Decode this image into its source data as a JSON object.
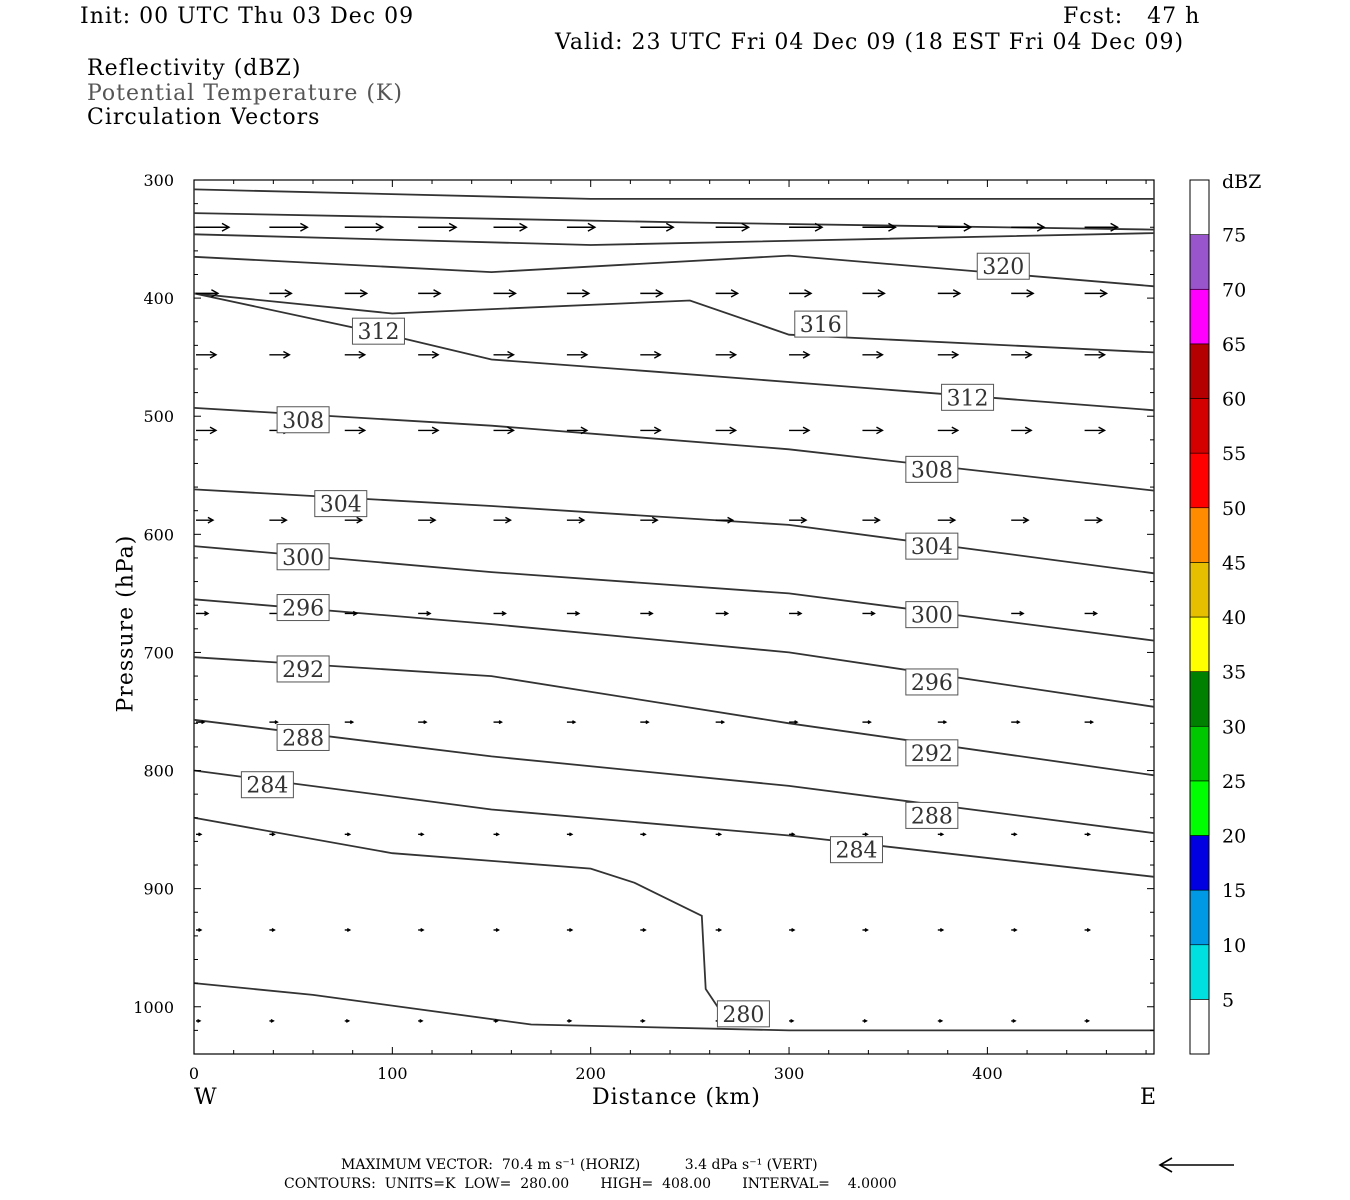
{
  "header": {
    "init": "Init: 00 UTC Thu 03 Dec 09",
    "fcst": "Fcst:   47 h",
    "valid": "Valid: 23 UTC Fri 04 Dec 09 (18 EST Fri 04 Dec 09)",
    "fields": [
      "Reflectivity (dBZ)",
      "Potential Temperature (K)",
      "Circulation Vectors"
    ]
  },
  "footer": {
    "max_vector": "MAXIMUM VECTOR:  70.4 m s⁻¹ (HORIZ)          3.4 dPa s⁻¹ (VERT)",
    "contours": "CONTOURS:  UNITS=K  LOW=  280.00       HIGH=  408.00       INTERVAL=    4.0000"
  },
  "colors": {
    "contour": "#333333",
    "vector": "#000000"
  },
  "chart_data": {
    "type": "line",
    "xlabel": "Distance (km)",
    "ylabel": "Pressure (hPa)",
    "xlim": [
      0,
      484
    ],
    "ylim": [
      1040,
      300
    ],
    "xticks": [
      0,
      100,
      200,
      300,
      400
    ],
    "yticks": [
      300,
      400,
      500,
      600,
      700,
      800,
      900,
      1000
    ],
    "x_end_labels": {
      "left": "W",
      "right": "E"
    },
    "colorbar": {
      "title": "dBZ",
      "labels": [
        "5",
        "10",
        "15",
        "20",
        "25",
        "30",
        "35",
        "40",
        "45",
        "50",
        "55",
        "60",
        "65",
        "70",
        "75"
      ],
      "colors": [
        "#ffffff",
        "#00e0e0",
        "#0099e6",
        "#0000e0",
        "#00ff00",
        "#00c800",
        "#008000",
        "#ffff00",
        "#e6bf00",
        "#ff8c00",
        "#ff0000",
        "#d40000",
        "#b40000",
        "#ff00ff",
        "#9955cc",
        "#ffffff"
      ]
    },
    "series": [
      {
        "name": "",
        "points": [
          [
            0,
            308
          ],
          [
            200,
            316
          ],
          [
            484,
            316
          ]
        ]
      },
      {
        "name": "",
        "points": [
          [
            0,
            328
          ],
          [
            250,
            336
          ],
          [
            484,
            342
          ]
        ]
      },
      {
        "name": "",
        "points": [
          [
            0,
            346
          ],
          [
            200,
            355
          ],
          [
            484,
            345
          ]
        ]
      },
      {
        "name": "320",
        "label": "320",
        "label_at": [
          408,
          373
        ],
        "points": [
          [
            0,
            365
          ],
          [
            150,
            378
          ],
          [
            300,
            364
          ],
          [
            484,
            390
          ]
        ]
      },
      {
        "name": "316",
        "label": "316",
        "label_at": [
          316,
          422
        ],
        "points": [
          [
            0,
            396
          ],
          [
            100,
            413
          ],
          [
            250,
            402
          ],
          [
            300,
            431
          ],
          [
            484,
            446
          ]
        ]
      },
      {
        "name": "312",
        "label": "312",
        "label_at": [
          93,
          428
        ],
        "label2_at": [
          390,
          484
        ],
        "points": [
          [
            0,
            396
          ],
          [
            100,
            432
          ],
          [
            150,
            452
          ],
          [
            230,
            462
          ],
          [
            484,
            495
          ]
        ]
      },
      {
        "name": "308",
        "label": "308",
        "label_at": [
          55,
          503
        ],
        "label2_at": [
          372,
          545
        ],
        "points": [
          [
            0,
            493
          ],
          [
            150,
            508
          ],
          [
            300,
            528
          ],
          [
            484,
            563
          ]
        ]
      },
      {
        "name": "304",
        "label": "304",
        "label_at": [
          74,
          574
        ],
        "label2_at": [
          372,
          610
        ],
        "points": [
          [
            0,
            562
          ],
          [
            150,
            576
          ],
          [
            300,
            592
          ],
          [
            484,
            633
          ]
        ]
      },
      {
        "name": "300",
        "label": "300",
        "label_at": [
          55,
          619
        ],
        "label2_at": [
          372,
          668
        ],
        "points": [
          [
            0,
            610
          ],
          [
            150,
            632
          ],
          [
            300,
            650
          ],
          [
            484,
            690
          ]
        ]
      },
      {
        "name": "296",
        "label": "296",
        "label_at": [
          55,
          662
        ],
        "label2_at": [
          372,
          725
        ],
        "points": [
          [
            0,
            655
          ],
          [
            150,
            676
          ],
          [
            300,
            700
          ],
          [
            484,
            746
          ]
        ]
      },
      {
        "name": "292",
        "label": "292",
        "label_at": [
          55,
          714
        ],
        "label2_at": [
          372,
          785
        ],
        "points": [
          [
            0,
            704
          ],
          [
            150,
            720
          ],
          [
            300,
            760
          ],
          [
            484,
            804
          ]
        ]
      },
      {
        "name": "288",
        "label": "288",
        "label_at": [
          55,
          772
        ],
        "label2_at": [
          372,
          838
        ],
        "points": [
          [
            0,
            757
          ],
          [
            150,
            788
          ],
          [
            300,
            813
          ],
          [
            484,
            853
          ]
        ]
      },
      {
        "name": "284",
        "label": "284",
        "label_at": [
          37,
          812
        ],
        "label2_at": [
          334,
          867
        ],
        "points": [
          [
            0,
            800
          ],
          [
            150,
            833
          ],
          [
            300,
            855
          ],
          [
            484,
            890
          ]
        ]
      },
      {
        "name": "",
        "points": [
          [
            0,
            840
          ],
          [
            100,
            870
          ],
          [
            200,
            883
          ],
          [
            222,
            895
          ],
          [
            256,
            923
          ],
          [
            258,
            985
          ],
          [
            264,
            1000
          ],
          [
            268,
            1003
          ]
        ]
      },
      {
        "name": "280",
        "label": "280",
        "label_at": [
          277,
          1006
        ],
        "points": [
          [
            0,
            980
          ],
          [
            60,
            990
          ],
          [
            170,
            1015
          ],
          [
            300,
            1020
          ],
          [
            484,
            1020
          ]
        ]
      }
    ],
    "vectors": {
      "x": [
        0,
        37,
        75,
        112,
        150,
        187,
        224,
        262,
        299,
        336,
        374,
        411,
        448
      ],
      "rows": [
        {
          "p": 340,
          "len": [
            33,
            38,
            38,
            38,
            33,
            28,
            33,
            33,
            33,
            33,
            33,
            33,
            33
          ]
        },
        {
          "p": 396,
          "len": [
            22,
            22,
            22,
            22,
            22,
            22,
            22,
            22,
            22,
            22,
            22,
            22,
            22
          ]
        },
        {
          "p": 448,
          "len": [
            20,
            20,
            20,
            20,
            20,
            20,
            20,
            20,
            20,
            20,
            20,
            20,
            20
          ]
        },
        {
          "p": 512,
          "len": [
            20,
            20,
            20,
            20,
            20,
            20,
            20,
            20,
            20,
            20,
            20,
            20,
            20
          ]
        },
        {
          "p": 588,
          "len": [
            17,
            17,
            17,
            17,
            17,
            17,
            17,
            17,
            17,
            17,
            17,
            17,
            17
          ]
        },
        {
          "p": 667,
          "len": [
            12,
            12,
            12,
            12,
            12,
            12,
            12,
            12,
            12,
            12,
            12,
            12,
            12
          ]
        },
        {
          "p": 759,
          "len": [
            8,
            8,
            8,
            8,
            8,
            8,
            8,
            8,
            8,
            8,
            8,
            8,
            8
          ]
        },
        {
          "p": 854,
          "len": [
            5,
            5,
            5,
            5,
            5,
            5,
            5,
            5,
            5,
            5,
            5,
            5,
            5
          ]
        },
        {
          "p": 935,
          "len": [
            5,
            5,
            5,
            5,
            5,
            5,
            5,
            5,
            5,
            5,
            5,
            5,
            5
          ]
        },
        {
          "p": 1012,
          "len": [
            4,
            4,
            4,
            4,
            4,
            4,
            4,
            4,
            4,
            4,
            4,
            4,
            4
          ]
        }
      ]
    }
  }
}
